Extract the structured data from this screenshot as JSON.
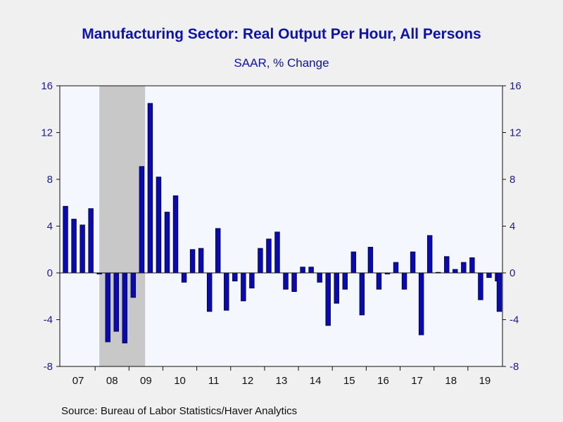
{
  "colors": {
    "bar": "#0a0ab4",
    "bar_edge": "#00003c",
    "plot_bg": "#f4f8fe",
    "recession": "#c8c8c8",
    "text_accent": "#0c10b8"
  },
  "chart_data": {
    "type": "bar",
    "title": "Manufacturing Sector: Real Output Per Hour, All Persons",
    "subtitle": "SAAR, % Change",
    "source": "Source:  Bureau of Labor Statistics/Haver Analytics",
    "xlabel": "",
    "ylabel": "",
    "ylim": [
      -8,
      16
    ],
    "yticks": [
      -8,
      -4,
      0,
      4,
      8,
      12,
      16
    ],
    "ytick_labels": [
      "-8",
      "-4",
      "0",
      "4",
      "8",
      "12",
      "16"
    ],
    "dual_y_axis": true,
    "grid": false,
    "year_labels": [
      "07",
      "08",
      "09",
      "10",
      "11",
      "12",
      "13",
      "14",
      "15",
      "16",
      "17",
      "18",
      "19"
    ],
    "recession_shading": {
      "start": "2008Q1",
      "end": "2009Q2"
    },
    "categories": [
      "2007Q1",
      "2007Q2",
      "2007Q3",
      "2007Q4",
      "2008Q1",
      "2008Q2",
      "2008Q3",
      "2008Q4",
      "2009Q1",
      "2009Q2",
      "2009Q3",
      "2009Q4",
      "2010Q1",
      "2010Q2",
      "2010Q3",
      "2010Q4",
      "2011Q1",
      "2011Q2",
      "2011Q3",
      "2011Q4",
      "2012Q1",
      "2012Q2",
      "2012Q3",
      "2012Q4",
      "2013Q1",
      "2013Q2",
      "2013Q3",
      "2013Q4",
      "2014Q1",
      "2014Q2",
      "2014Q3",
      "2014Q4",
      "2015Q1",
      "2015Q2",
      "2015Q3",
      "2015Q4",
      "2016Q1",
      "2016Q2",
      "2016Q3",
      "2016Q4",
      "2017Q1",
      "2017Q2",
      "2017Q3",
      "2017Q4",
      "2018Q1",
      "2018Q2",
      "2018Q3",
      "2018Q4",
      "2019Q1",
      "2019Q2",
      "2019Q3",
      "2019Q4"
    ],
    "values": [
      5.7,
      4.6,
      4.1,
      5.5,
      -0.1,
      -5.9,
      -5.0,
      -6.0,
      -2.1,
      9.1,
      14.5,
      8.2,
      5.2,
      6.6,
      -0.8,
      2.0,
      2.1,
      -3.3,
      3.8,
      -3.2,
      -0.7,
      -2.4,
      -1.3,
      2.1,
      2.9,
      3.5,
      -1.4,
      -1.6,
      0.5,
      0.5,
      -0.8,
      -4.5,
      -2.6,
      -1.4,
      1.8,
      -3.6,
      2.2,
      -1.4,
      -0.1,
      0.9,
      -1.4,
      1.8,
      -5.3,
      3.2,
      0.05,
      1.4,
      0.3,
      0.9,
      1.3,
      -2.3,
      -0.4,
      -0.7
    ],
    "trailing_value": -3.3
  }
}
